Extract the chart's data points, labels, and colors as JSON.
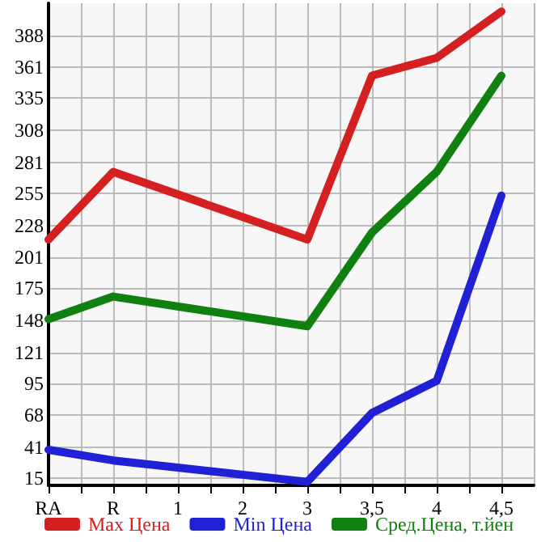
{
  "chart_data": {
    "type": "line",
    "categories": [
      "RA",
      "R",
      "1",
      "2",
      "3",
      "3,5",
      "4",
      "4,5"
    ],
    "series": [
      {
        "name": "Max Цена",
        "color": "#d42020",
        "values": [
          216,
          273,
          null,
          null,
          216,
          354,
          369,
          408
        ]
      },
      {
        "name": "Min Цена",
        "color": "#2020d4",
        "values": [
          39,
          30,
          null,
          null,
          12,
          70,
          97,
          253
        ]
      },
      {
        "name": "Сред.Цена, т.йен",
        "color": "#108010",
        "values": [
          149,
          168,
          null,
          null,
          143,
          222,
          273,
          354
        ]
      }
    ],
    "ylim": [
      9,
      415
    ],
    "yticks": [
      15,
      41,
      68,
      95,
      121,
      148,
      175,
      201,
      228,
      255,
      281,
      308,
      335,
      361,
      388
    ],
    "grid": true,
    "legend": "bottom",
    "marker": "none",
    "line_style": "solid"
  }
}
